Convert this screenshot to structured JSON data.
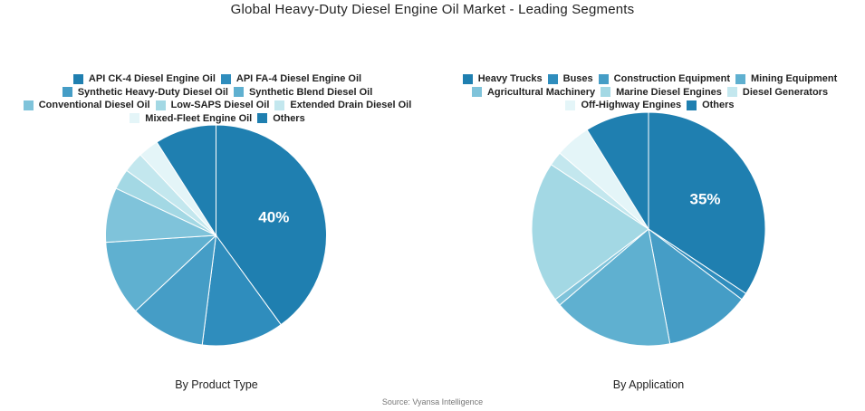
{
  "title": "Global Heavy-Duty Diesel Engine Oil Market - Leading Segments",
  "source": "Source: Vyansa Intelligence",
  "chart_data": [
    {
      "type": "pie",
      "title": "By Product Type",
      "labeled_value": "40%",
      "series": [
        {
          "name": "API CK-4 Diesel Engine Oil",
          "value": 40,
          "color": "#1f7fb0"
        },
        {
          "name": "API FA-4 Diesel Engine Oil",
          "value": 12,
          "color": "#2f8dbd"
        },
        {
          "name": "Synthetic Heavy-Duty Diesel Oil",
          "value": 11,
          "color": "#459dc6"
        },
        {
          "name": "Synthetic Blend Diesel Oil",
          "value": 11,
          "color": "#5fb0d0"
        },
        {
          "name": "Conventional Diesel Oil",
          "value": 8,
          "color": "#7fc3da"
        },
        {
          "name": "Low-SAPS Diesel Oil",
          "value": 3,
          "color": "#a3d8e4"
        },
        {
          "name": "Extended Drain Diesel Oil",
          "value": 3,
          "color": "#c3e7ee"
        },
        {
          "name": "Mixed-Fleet Engine Oil",
          "value": 3,
          "color": "#e4f5f8"
        },
        {
          "name": "Others",
          "value": 9,
          "color": "#1f7fb0"
        }
      ],
      "legend_rows": [
        [
          0,
          1
        ],
        [
          2,
          3
        ],
        [
          4,
          5,
          6
        ],
        [
          7,
          8
        ]
      ]
    },
    {
      "type": "pie",
      "title": "By Application",
      "labeled_value": "35%",
      "series": [
        {
          "name": "Heavy Trucks",
          "value": 35,
          "color": "#1f7fb0"
        },
        {
          "name": "Buses",
          "value": 1,
          "color": "#2f8dbd"
        },
        {
          "name": "Construction Equipment",
          "value": 12,
          "color": "#459dc6"
        },
        {
          "name": "Mining Equipment",
          "value": 17,
          "color": "#5fb0d0"
        },
        {
          "name": "Agricultural Machinery",
          "value": 1,
          "color": "#7fc3da"
        },
        {
          "name": "Marine Diesel Engines",
          "value": 20,
          "color": "#a3d8e4"
        },
        {
          "name": "Diesel Generators",
          "value": 2,
          "color": "#c3e7ee"
        },
        {
          "name": "Off-Highway Engines",
          "value": 5,
          "color": "#e4f5f8"
        },
        {
          "name": "Others",
          "value": 9,
          "color": "#1f7fb0"
        }
      ],
      "legend_rows": [
        [
          0,
          1,
          2,
          3
        ],
        [
          4,
          5,
          6
        ],
        [
          7,
          8
        ]
      ]
    }
  ]
}
